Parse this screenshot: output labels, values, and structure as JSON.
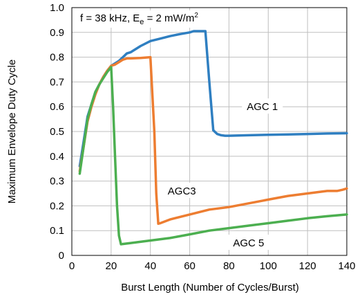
{
  "chart_data": {
    "type": "line",
    "xlabel": "Burst Length (Number of Cycles/Burst)",
    "ylabel": "Maximum Envelope Duty Cycle",
    "xlim": [
      0,
      140
    ],
    "ylim": [
      0,
      1.0
    ],
    "xticks": [
      "0",
      "20",
      "40",
      "60",
      "80",
      "100",
      "120",
      "140"
    ],
    "yticks": [
      "0",
      "0.1",
      "0.2",
      "0.3",
      "0.4",
      "0.5",
      "0.6",
      "0.7",
      "0.8",
      "0.9",
      "1.0"
    ],
    "grid": true,
    "condition": {
      "prefix": "f = 38 kHz, E",
      "subscript": "e",
      "middle": " = 2 mW/m",
      "superscript": "2"
    },
    "series": [
      {
        "name": "AGC 1",
        "color": "#2f7fc1",
        "x": [
          4,
          6,
          8,
          10,
          12,
          14,
          16,
          18,
          20,
          22,
          24,
          26,
          28,
          30,
          35,
          40,
          45,
          50,
          55,
          60,
          62,
          64,
          66,
          68,
          70,
          72,
          74,
          76,
          78,
          80,
          90,
          100,
          110,
          120,
          130,
          140
        ],
        "y": [
          0.36,
          0.46,
          0.56,
          0.61,
          0.66,
          0.69,
          0.72,
          0.745,
          0.765,
          0.775,
          0.785,
          0.8,
          0.815,
          0.82,
          0.845,
          0.865,
          0.875,
          0.885,
          0.893,
          0.9,
          0.905,
          0.905,
          0.905,
          0.905,
          0.7,
          0.505,
          0.49,
          0.485,
          0.483,
          0.483,
          0.485,
          0.487,
          0.488,
          0.49,
          0.492,
          0.493
        ]
      },
      {
        "name": "AGC3",
        "color": "#ed7d31",
        "x": [
          4,
          6,
          8,
          10,
          12,
          14,
          16,
          18,
          20,
          22,
          24,
          26,
          28,
          30,
          35,
          40,
          42,
          43,
          44,
          45,
          50,
          60,
          70,
          80,
          90,
          100,
          110,
          120,
          130,
          135,
          138,
          140
        ],
        "y": [
          0.34,
          0.44,
          0.54,
          0.6,
          0.65,
          0.69,
          0.72,
          0.745,
          0.765,
          0.77,
          0.78,
          0.79,
          0.795,
          0.795,
          0.797,
          0.8,
          0.5,
          0.25,
          0.128,
          0.13,
          0.145,
          0.165,
          0.185,
          0.195,
          0.21,
          0.225,
          0.24,
          0.25,
          0.26,
          0.26,
          0.265,
          0.27
        ]
      },
      {
        "name": "AGC 5",
        "color": "#4caf50",
        "x": [
          4,
          6,
          8,
          10,
          12,
          14,
          16,
          18,
          20,
          21,
          22,
          23,
          24,
          25,
          30,
          40,
          50,
          60,
          70,
          80,
          90,
          100,
          110,
          120,
          130,
          140
        ],
        "y": [
          0.33,
          0.44,
          0.55,
          0.61,
          0.66,
          0.69,
          0.715,
          0.74,
          0.76,
          0.6,
          0.4,
          0.2,
          0.08,
          0.045,
          0.05,
          0.06,
          0.07,
          0.085,
          0.1,
          0.11,
          0.12,
          0.13,
          0.14,
          0.15,
          0.158,
          0.165
        ]
      }
    ],
    "annotations": [
      {
        "series": "AGC 1",
        "text": "AGC 1",
        "x": 97,
        "y": 0.6
      },
      {
        "series": "AGC3",
        "text": "AGC3",
        "x": 56,
        "y": 0.26
      },
      {
        "series": "AGC 5",
        "text": "AGC 5",
        "x": 90,
        "y": 0.05
      }
    ]
  }
}
